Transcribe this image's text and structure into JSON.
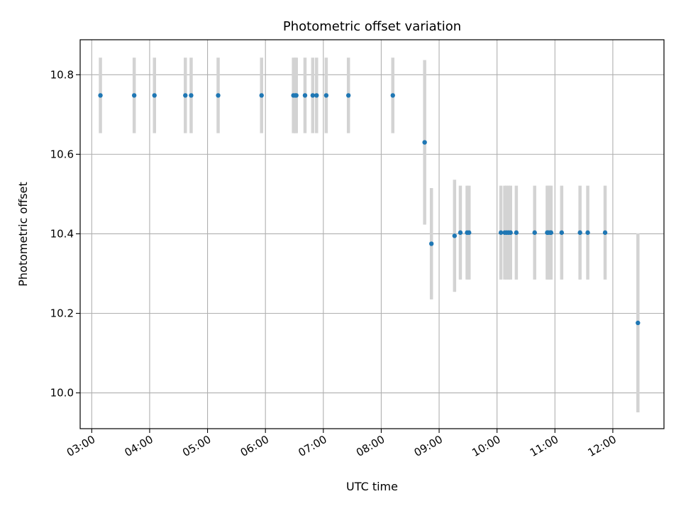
{
  "chart_data": {
    "type": "scatter",
    "title": "Photometric offset variation",
    "xlabel": "UTC time",
    "ylabel": "Photometric offset",
    "xlim": [
      "02:48",
      "12:53"
    ],
    "ylim": [
      9.91,
      10.888
    ],
    "x_ticks": [
      "03:00",
      "04:00",
      "05:00",
      "06:00",
      "07:00",
      "08:00",
      "09:00",
      "10:00",
      "11:00",
      "12:00"
    ],
    "y_ticks": [
      "10.0",
      "10.2",
      "10.4",
      "10.6",
      "10.8"
    ],
    "grid": true,
    "colors": {
      "marker": "#1f77b4",
      "errorbar": "#d3d3d3",
      "grid": "#b0b0b0"
    },
    "series": [
      {
        "points": [
          {
            "t": "03:09",
            "y": 10.748,
            "err": 0.095
          },
          {
            "t": "03:44",
            "y": 10.748,
            "err": 0.095
          },
          {
            "t": "04:05",
            "y": 10.748,
            "err": 0.095
          },
          {
            "t": "04:37",
            "y": 10.748,
            "err": 0.095
          },
          {
            "t": "04:43",
            "y": 10.748,
            "err": 0.095
          },
          {
            "t": "05:11",
            "y": 10.748,
            "err": 0.095
          },
          {
            "t": "05:56",
            "y": 10.748,
            "err": 0.095
          },
          {
            "t": "06:29",
            "y": 10.748,
            "err": 0.095
          },
          {
            "t": "06:31",
            "y": 10.748,
            "err": 0.095
          },
          {
            "t": "06:32",
            "y": 10.748,
            "err": 0.095
          },
          {
            "t": "06:41",
            "y": 10.748,
            "err": 0.095
          },
          {
            "t": "06:49",
            "y": 10.748,
            "err": 0.095
          },
          {
            "t": "06:53",
            "y": 10.748,
            "err": 0.095
          },
          {
            "t": "07:03",
            "y": 10.748,
            "err": 0.095
          },
          {
            "t": "07:26",
            "y": 10.748,
            "err": 0.095
          },
          {
            "t": "08:12",
            "y": 10.748,
            "err": 0.095
          },
          {
            "t": "08:45",
            "y": 10.63,
            "err": 0.207
          },
          {
            "t": "08:52",
            "y": 10.375,
            "err": 0.14
          },
          {
            "t": "09:16",
            "y": 10.395,
            "err": 0.141
          },
          {
            "t": "09:22",
            "y": 10.403,
            "err": 0.118
          },
          {
            "t": "09:29",
            "y": 10.403,
            "err": 0.118
          },
          {
            "t": "09:31",
            "y": 10.403,
            "err": 0.118
          },
          {
            "t": "10:04",
            "y": 10.403,
            "err": 0.118
          },
          {
            "t": "10:08",
            "y": 10.403,
            "err": 0.118
          },
          {
            "t": "10:10",
            "y": 10.403,
            "err": 0.118
          },
          {
            "t": "10:12",
            "y": 10.403,
            "err": 0.118
          },
          {
            "t": "10:14",
            "y": 10.403,
            "err": 0.118
          },
          {
            "t": "10:20",
            "y": 10.403,
            "err": 0.118
          },
          {
            "t": "10:39",
            "y": 10.403,
            "err": 0.118
          },
          {
            "t": "10:52",
            "y": 10.403,
            "err": 0.118
          },
          {
            "t": "10:53",
            "y": 10.403,
            "err": 0.118
          },
          {
            "t": "10:55",
            "y": 10.403,
            "err": 0.118
          },
          {
            "t": "10:56",
            "y": 10.403,
            "err": 0.118
          },
          {
            "t": "11:07",
            "y": 10.403,
            "err": 0.118
          },
          {
            "t": "11:26",
            "y": 10.403,
            "err": 0.118
          },
          {
            "t": "11:34",
            "y": 10.403,
            "err": 0.118
          },
          {
            "t": "11:52",
            "y": 10.403,
            "err": 0.118
          },
          {
            "t": "12:26",
            "y": 10.176,
            "err": 0.225
          }
        ]
      }
    ]
  }
}
